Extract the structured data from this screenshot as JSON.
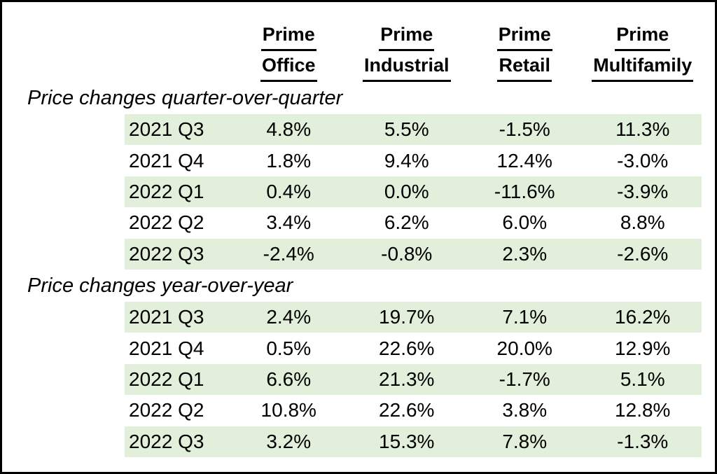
{
  "table": {
    "columns": [
      {
        "line1": "Prime",
        "line2": "Office"
      },
      {
        "line1": "Prime",
        "line2": "Industrial"
      },
      {
        "line1": "Prime",
        "line2": "Retail"
      },
      {
        "line1": "Prime",
        "line2": "Multifamily"
      }
    ],
    "sections": [
      {
        "title": "Price changes quarter-over-quarter",
        "rows": [
          {
            "label": "2021 Q3",
            "values": [
              "4.8%",
              "5.5%",
              "-1.5%",
              "11.3%"
            ],
            "shaded": true
          },
          {
            "label": "2021 Q4",
            "values": [
              "1.8%",
              "9.4%",
              "12.4%",
              "-3.0%"
            ],
            "shaded": false
          },
          {
            "label": "2022 Q1",
            "values": [
              "0.4%",
              "0.0%",
              "-11.6%",
              "-3.9%"
            ],
            "shaded": true
          },
          {
            "label": "2022 Q2",
            "values": [
              "3.4%",
              "6.2%",
              "6.0%",
              "8.8%"
            ],
            "shaded": false
          },
          {
            "label": "2022 Q3",
            "values": [
              "-2.4%",
              "-0.8%",
              "2.3%",
              "-2.6%"
            ],
            "shaded": true
          }
        ]
      },
      {
        "title": "Price changes year-over-year",
        "rows": [
          {
            "label": "2021 Q3",
            "values": [
              "2.4%",
              "19.7%",
              "7.1%",
              "16.2%"
            ],
            "shaded": true
          },
          {
            "label": "2021 Q4",
            "values": [
              "0.5%",
              "22.6%",
              "20.0%",
              "12.9%"
            ],
            "shaded": false
          },
          {
            "label": "2022 Q1",
            "values": [
              "6.6%",
              "21.3%",
              "-1.7%",
              "5.1%"
            ],
            "shaded": true
          },
          {
            "label": "2022 Q2",
            "values": [
              "10.8%",
              "22.6%",
              "3.8%",
              "12.8%"
            ],
            "shaded": false
          },
          {
            "label": "2022 Q3",
            "values": [
              "3.2%",
              "15.3%",
              "7.8%",
              "-1.3%"
            ],
            "shaded": true
          }
        ]
      }
    ]
  },
  "colors": {
    "band": "#e2efda",
    "border": "#000000",
    "text": "#000000"
  },
  "chart_data": {
    "type": "table",
    "column_headers": [
      "Prime Office",
      "Prime Industrial",
      "Prime Retail",
      "Prime Multifamily"
    ],
    "units": "percent",
    "sections": [
      {
        "title": "Price changes quarter-over-quarter",
        "row_labels": [
          "2021 Q3",
          "2021 Q4",
          "2022 Q1",
          "2022 Q2",
          "2022 Q3"
        ],
        "series": [
          {
            "name": "Prime Office",
            "values": [
              4.8,
              1.8,
              0.4,
              3.4,
              -2.4
            ]
          },
          {
            "name": "Prime Industrial",
            "values": [
              5.5,
              9.4,
              0.0,
              6.2,
              -0.8
            ]
          },
          {
            "name": "Prime Retail",
            "values": [
              -1.5,
              12.4,
              -11.6,
              6.0,
              2.3
            ]
          },
          {
            "name": "Prime Multifamily",
            "values": [
              11.3,
              -3.0,
              -3.9,
              8.8,
              -2.6
            ]
          }
        ]
      },
      {
        "title": "Price changes year-over-year",
        "row_labels": [
          "2021 Q3",
          "2021 Q4",
          "2022 Q1",
          "2022 Q2",
          "2022 Q3"
        ],
        "series": [
          {
            "name": "Prime Office",
            "values": [
              2.4,
              0.5,
              6.6,
              10.8,
              3.2
            ]
          },
          {
            "name": "Prime Industrial",
            "values": [
              19.7,
              22.6,
              21.3,
              22.6,
              15.3
            ]
          },
          {
            "name": "Prime Retail",
            "values": [
              7.1,
              20.0,
              -1.7,
              3.8,
              7.8
            ]
          },
          {
            "name": "Prime Multifamily",
            "values": [
              16.2,
              12.9,
              5.1,
              12.8,
              -1.3
            ]
          }
        ]
      }
    ],
    "layout": {
      "row_banding": true,
      "banding_color": "#e2efda",
      "header_style": "bold-underline",
      "section_title_style": "italic"
    }
  }
}
